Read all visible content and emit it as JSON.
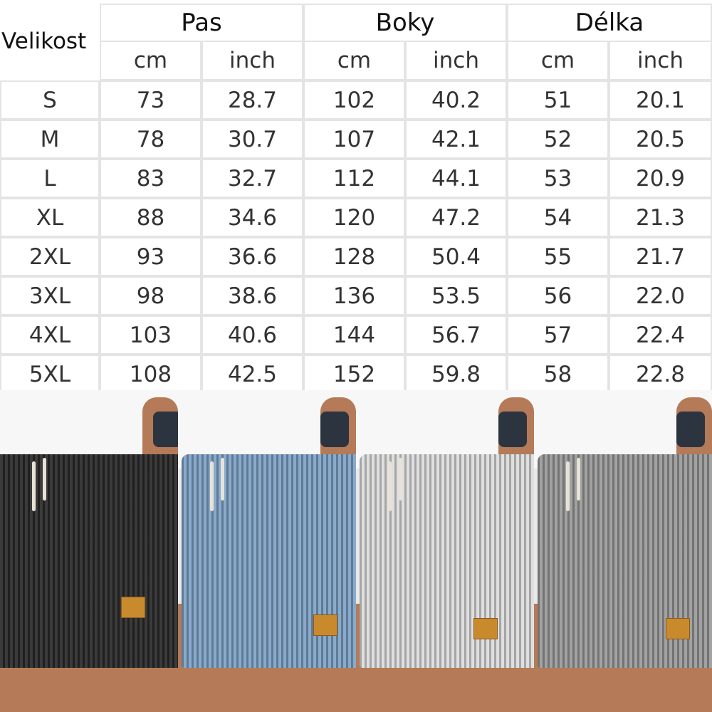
{
  "size_chart": {
    "size_header": "Velikost",
    "groups": [
      {
        "label": "Pas",
        "units": [
          "cm",
          "inch"
        ]
      },
      {
        "label": "Boky",
        "units": [
          "cm",
          "inch"
        ]
      },
      {
        "label": "Délka",
        "units": [
          "cm",
          "inch"
        ]
      }
    ],
    "rows": [
      {
        "size": "S",
        "values": [
          "73",
          "28.7",
          "102",
          "40.2",
          "51",
          "20.1"
        ]
      },
      {
        "size": "M",
        "values": [
          "78",
          "30.7",
          "107",
          "42.1",
          "52",
          "20.5"
        ]
      },
      {
        "size": "L",
        "values": [
          "83",
          "32.7",
          "112",
          "44.1",
          "53",
          "20.9"
        ]
      },
      {
        "size": "XL",
        "values": [
          "88",
          "34.6",
          "120",
          "47.2",
          "54",
          "21.3"
        ]
      },
      {
        "size": "2XL",
        "values": [
          "93",
          "36.6",
          "128",
          "50.4",
          "55",
          "21.7"
        ]
      },
      {
        "size": "3XL",
        "values": [
          "98",
          "38.6",
          "136",
          "53.5",
          "56",
          "22.0"
        ]
      },
      {
        "size": "4XL",
        "values": [
          "103",
          "40.6",
          "144",
          "56.7",
          "57",
          "22.4"
        ]
      },
      {
        "size": "5XL",
        "values": [
          "108",
          "42.5",
          "152",
          "59.8",
          "58",
          "22.8"
        ]
      }
    ]
  },
  "product_photo": {
    "variants": [
      {
        "color": "#2a2a2a"
      },
      {
        "color": "#7fa3c7"
      },
      {
        "color": "#dcdcdc"
      },
      {
        "color": "#9a9a9a"
      }
    ]
  }
}
